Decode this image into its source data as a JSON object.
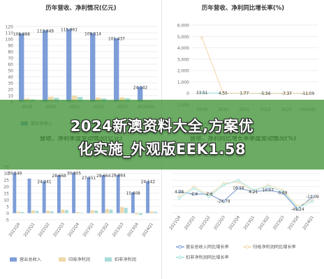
{
  "banner": {
    "line1": "2024新澳资料大全,方案优",
    "line2": "化实施_外观版EEK1.58"
  },
  "colors": {
    "revenue": "#7e9ed8",
    "net_profit": "#f0d8a8",
    "deducted": "#a8dcd8",
    "growth_line": "#9fe0dc",
    "grid": "#e8e8e8",
    "axis_text": "#666666"
  },
  "chart_data": [
    {
      "type": "bar",
      "title": "历年营收、净利情况(亿元)",
      "categories": [
        "2019",
        "2020",
        "2021",
        "2022",
        "2023",
        "2024Q1"
      ],
      "ylim": [
        0,
        120
      ],
      "yticks": [
        0,
        10,
        20,
        30,
        40,
        50,
        60,
        70,
        80,
        90,
        100,
        110,
        120
      ],
      "series": [
        {
          "name": "营业总收入",
          "values": [
            108.988,
            113.949,
            115.961,
            109.514,
            101.437,
            24.142
          ]
        },
        {
          "name": "归母净利润",
          "values": [
            5.2,
            8.1,
            9.8,
            6.9,
            7.2,
            1.3
          ]
        },
        {
          "name": "扣非净利润",
          "values": [
            3.9,
            6.5,
            7.8,
            5.4,
            5.8,
            1.0
          ]
        }
      ],
      "data_labels": [
        "108.988",
        "113.949",
        "115.961",
        "109.514",
        "101.437",
        "24.142"
      ],
      "legend_visible": [
        "营业总收入"
      ],
      "grid": true
    },
    {
      "type": "line",
      "title": "历年营收、净利同比增长率(%)",
      "categories": [
        "2019",
        "2020",
        "2021",
        "2022",
        "2023",
        "2024Q1"
      ],
      "ylim": [
        -1000,
        6000
      ],
      "yticks": [
        -1000,
        0,
        1000,
        2000,
        3000,
        4000,
        5000,
        6000
      ],
      "ytick_labels": [
        "-1,000",
        "0",
        "1,000",
        "2,000",
        "3,000",
        "4,000",
        "5,000",
        "6,000"
      ],
      "series": [
        {
          "name": "营业总收入同比增长率",
          "values": [
            33.51,
            4.55,
            1.77,
            -5.56,
            -7.37,
            -11.09
          ]
        },
        {
          "name": "归母净利润同比增长率",
          "values": [
            4900,
            10,
            20,
            -30,
            5,
            -5
          ]
        }
      ],
      "data_labels": [
        "33.51",
        "4.55",
        "1.77",
        "-5.56",
        "-7.37",
        "-11.09"
      ],
      "legend_visible": [
        "营业总收入同比增长率"
      ],
      "grid": true
    },
    {
      "type": "bar",
      "title": "营收、净利季度变动情况(亿元)",
      "categories": [
        "2021Q4",
        "2022Q1",
        "2022Q2",
        "2022Q3",
        "2022Q4",
        "2023Q1",
        "2023Q2",
        "2023Q3",
        "2023Q4",
        "2024Q1"
      ],
      "ylim": [
        -5,
        35
      ],
      "yticks": [
        -5,
        0,
        5,
        10,
        15,
        20,
        25,
        30,
        35
      ],
      "series": [
        {
          "name": "营业总收入",
          "values": [
            30.549,
            26.0,
            24.241,
            28.668,
            30.605,
            27.151,
            28.664,
            28.864,
            15.608,
            24.142
          ]
        },
        {
          "name": "归母净利润",
          "values": [
            1.2,
            2.0,
            1.8,
            2.6,
            0.8,
            2.1,
            3.0,
            4.5,
            -1.0,
            1.3
          ]
        },
        {
          "name": "扣非净利润",
          "values": [
            0.9,
            1.6,
            1.4,
            2.2,
            0.3,
            1.8,
            2.6,
            3.9,
            -1.4,
            1.0
          ]
        }
      ],
      "data_labels": [
        "30.549",
        "",
        "24.241",
        "28.668",
        "30.605",
        "27.151",
        "28.664",
        "28.864",
        "15.608",
        "24.142"
      ],
      "legend": [
        "营业总收入",
        "归母净利润",
        "扣非净利润"
      ],
      "grid": true
    },
    {
      "type": "line",
      "title": "营收、净利同比增长率季度变动情况(%)",
      "categories": [
        "2021Q4",
        "2022Q1",
        "2022Q2",
        "2022Q3",
        "2022Q4",
        "2023Q1",
        "2023Q2",
        "2023Q3",
        "2023Q4",
        "2024Q1"
      ],
      "ylim": [
        -60,
        60
      ],
      "series": [
        {
          "name": "营业总收入同比增长率",
          "values": [
            4.28,
            -2.6,
            -2.6,
            -24.79,
            16.18,
            4.21,
            10.07,
            0.69,
            -49.24,
            -11.09
          ]
        },
        {
          "name": "归母净利润同比增长率",
          "values": [
            -10,
            20,
            -5,
            30,
            35,
            5,
            25,
            10,
            -40,
            -20
          ]
        },
        {
          "name": "扣非净利润同比增长率",
          "values": [
            -15,
            15,
            -10,
            25,
            40,
            10,
            20,
            5,
            -45,
            -25
          ]
        }
      ],
      "data_labels": [
        "4.28",
        "-2.6",
        "-2.6",
        "-24.79",
        "16.18",
        "4.21",
        "10.07",
        "0.69",
        "-49.24",
        "-11.09"
      ],
      "legend": [
        "营业总收入同比增长率",
        "归母净利润同比增长率",
        "扣非净利润同比增长率"
      ],
      "grid": true
    }
  ]
}
